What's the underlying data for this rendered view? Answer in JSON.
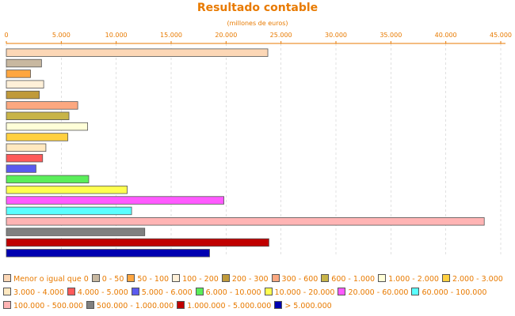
{
  "chart_data": {
    "type": "bar",
    "orientation": "horizontal",
    "title": "Resultado contable",
    "subtitle": "(millones de euros)",
    "xlim": [
      0,
      45000
    ],
    "x_ticks": [
      0,
      5000,
      10000,
      15000,
      20000,
      25000,
      30000,
      35000,
      40000,
      45000
    ],
    "x_tick_labels": [
      "0",
      "5.000",
      "10.000",
      "15.000",
      "20.000",
      "25.000",
      "30.000",
      "35.000",
      "40.000",
      "45.000"
    ],
    "axis_position": "top",
    "grid": true,
    "legend_position": "bottom",
    "categories": [
      "Menor o igual que 0",
      "0 - 50",
      "50 - 100",
      "100 - 200",
      "200 - 300",
      "300 - 600",
      "600 - 1.000",
      "1.000 - 2.000",
      "2.000 - 3.000",
      "3.000 - 4.000",
      "4.000 - 5.000",
      "5.000 - 6.000",
      "6.000 - 10.000",
      "10.000 - 20.000",
      "20.000 - 60.000",
      "60.000 - 100.000",
      "100.000 - 500.000",
      "500.000 - 1.000.000",
      "1.000.000 - 5.000.000",
      "> 5.000.000"
    ],
    "values": [
      23800,
      3200,
      2200,
      3400,
      3000,
      6500,
      5700,
      7400,
      5600,
      3600,
      3300,
      2700,
      7500,
      11000,
      19800,
      11400,
      43500,
      12600,
      23900,
      18500
    ],
    "colors": [
      "#fcd7b6",
      "#c8b8a0",
      "#ffa640",
      "#fff0d8",
      "#c09a3a",
      "#fca880",
      "#c8b448",
      "#ffffd8",
      "#ffd040",
      "#ffe8c0",
      "#ff5a5a",
      "#5a5aee",
      "#5aee5a",
      "#ffff50",
      "#ff5aff",
      "#5affff",
      "#ffb4b4",
      "#808080",
      "#c00000",
      "#0000b0"
    ]
  }
}
